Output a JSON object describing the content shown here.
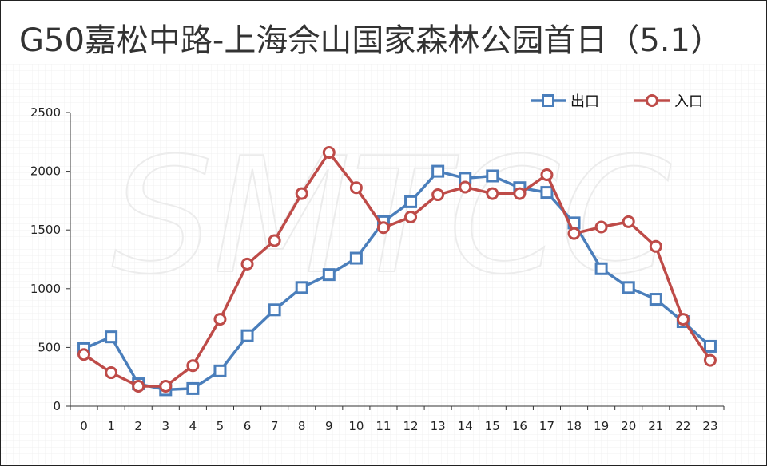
{
  "chart_data": {
    "type": "line",
    "title": "G50嘉松中路-上海佘山国家森林公园首日（5.1）",
    "watermark": "SMTCC",
    "categories": [
      "0",
      "1",
      "2",
      "3",
      "4",
      "5",
      "6",
      "7",
      "8",
      "9",
      "10",
      "11",
      "12",
      "13",
      "14",
      "15",
      "16",
      "17",
      "18",
      "19",
      "20",
      "21",
      "22",
      "23"
    ],
    "ylim": [
      0,
      2500
    ],
    "yticks": [
      0,
      500,
      1000,
      1500,
      2000,
      2500
    ],
    "grid": true,
    "legend_position": "top-right",
    "series": [
      {
        "name": "出口",
        "color": "#4a7ebb",
        "marker": "square",
        "values": [
          490,
          590,
          190,
          140,
          150,
          300,
          600,
          820,
          1010,
          1120,
          1260,
          1570,
          1740,
          2000,
          1940,
          1960,
          1860,
          1820,
          1560,
          1170,
          1010,
          910,
          720,
          510
        ]
      },
      {
        "name": "入口",
        "color": "#be4b48",
        "marker": "circle",
        "values": [
          440,
          285,
          170,
          170,
          345,
          740,
          1210,
          1410,
          1810,
          2160,
          1860,
          1520,
          1610,
          1800,
          1865,
          1810,
          1810,
          1970,
          1470,
          1525,
          1570,
          1360,
          740,
          390
        ]
      }
    ]
  }
}
